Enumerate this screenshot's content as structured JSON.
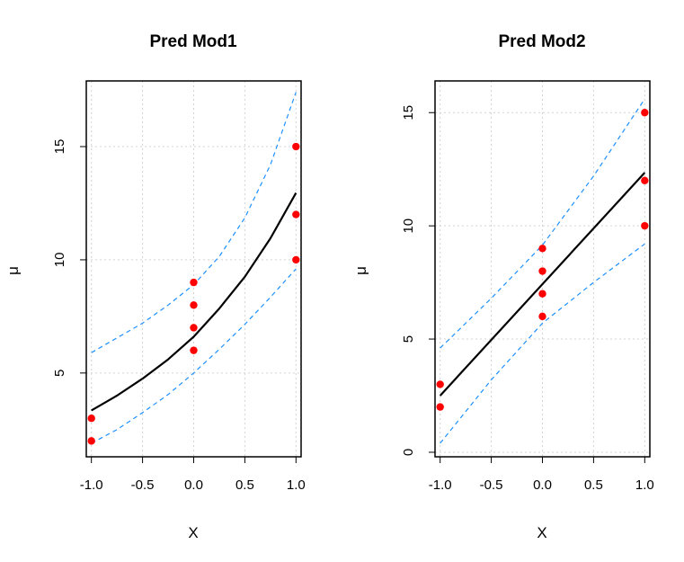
{
  "chart_data": [
    {
      "type": "line",
      "title": "Pred Mod1",
      "xlabel": "X",
      "ylabel": "μ",
      "xlim": [
        -1.05,
        1.05
      ],
      "ylim": [
        1.3,
        17.9
      ],
      "x_ticks": [
        -1.0,
        -0.5,
        0.0,
        0.5,
        1.0
      ],
      "x_tick_labels": [
        "-1.0",
        "-0.5",
        "0.0",
        "0.5",
        "1.0"
      ],
      "y_ticks": [
        5,
        10,
        15
      ],
      "y_tick_labels": [
        "5",
        "10",
        "15"
      ],
      "grid": true,
      "points": {
        "name": "",
        "color": "#ff0000",
        "x": [
          -1,
          -1,
          0,
          0,
          0,
          0,
          1,
          1,
          1
        ],
        "y": [
          2,
          3,
          6,
          7,
          8,
          9,
          10,
          12,
          15
        ]
      },
      "fit": {
        "name": "",
        "color": "#000000",
        "x": [
          -1.0,
          -0.75,
          -0.5,
          -0.25,
          0.0,
          0.25,
          0.5,
          0.75,
          1.0
        ],
        "y": [
          3.35,
          4.0,
          4.75,
          5.6,
          6.6,
          7.85,
          9.25,
          10.95,
          12.95
        ]
      },
      "lower": {
        "name": "",
        "color": "#1e90ff",
        "x": [
          -1.0,
          -0.75,
          -0.5,
          -0.25,
          0.0,
          0.25,
          0.5,
          0.75,
          1.0
        ],
        "y": [
          1.9,
          2.5,
          3.25,
          4.05,
          5.0,
          6.05,
          7.15,
          8.35,
          9.6
        ]
      },
      "upper": {
        "name": "",
        "color": "#1e90ff",
        "x": [
          -1.0,
          -0.75,
          -0.5,
          -0.25,
          0.0,
          0.25,
          0.5,
          0.75,
          1.0
        ],
        "y": [
          5.9,
          6.55,
          7.2,
          8.0,
          8.9,
          10.15,
          11.85,
          14.2,
          17.4
        ]
      }
    },
    {
      "type": "line",
      "title": "Pred Mod2",
      "xlabel": "X",
      "ylabel": "μ",
      "xlim": [
        -1.05,
        1.05
      ],
      "ylim": [
        -0.2,
        16.4
      ],
      "x_ticks": [
        -1.0,
        -0.5,
        0.0,
        0.5,
        1.0
      ],
      "x_tick_labels": [
        "-1.0",
        "-0.5",
        "0.0",
        "0.5",
        "1.0"
      ],
      "y_ticks": [
        0,
        5,
        10,
        15
      ],
      "y_tick_labels": [
        "0",
        "5",
        "10",
        "15"
      ],
      "grid": true,
      "points": {
        "name": "",
        "color": "#ff0000",
        "x": [
          -1,
          -1,
          0,
          0,
          0,
          0,
          1,
          1,
          1
        ],
        "y": [
          2,
          3,
          6,
          7,
          8,
          9,
          10,
          12,
          15
        ]
      },
      "fit": {
        "name": "",
        "color": "#000000",
        "x": [
          -1.0,
          1.0
        ],
        "y": [
          2.5,
          12.35
        ]
      },
      "lower": {
        "name": "",
        "color": "#1e90ff",
        "x": [
          -1.0,
          -0.5,
          0.0,
          0.5,
          1.0
        ],
        "y": [
          0.4,
          3.2,
          5.7,
          7.5,
          9.2
        ]
      },
      "upper": {
        "name": "",
        "color": "#1e90ff",
        "x": [
          -1.0,
          -0.5,
          0.0,
          0.5,
          1.0
        ],
        "y": [
          4.6,
          6.8,
          9.15,
          12.2,
          15.6
        ]
      }
    }
  ]
}
